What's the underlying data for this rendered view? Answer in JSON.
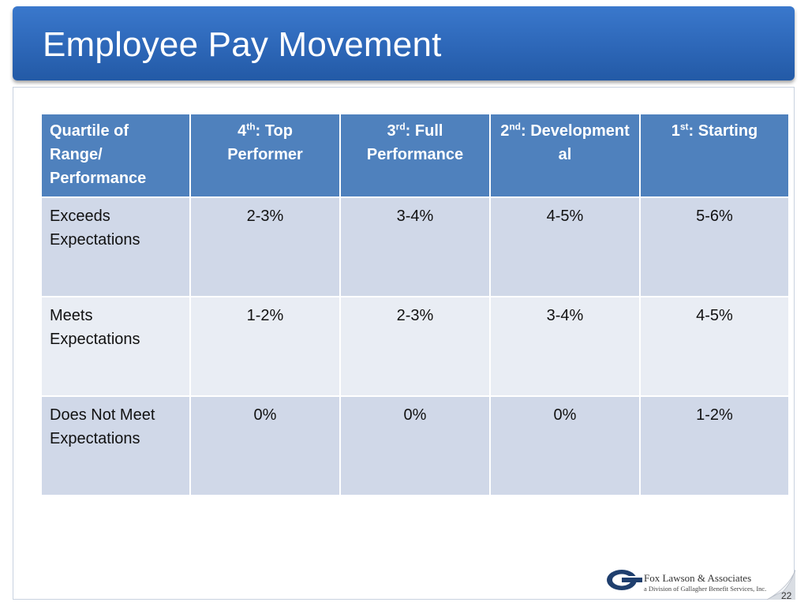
{
  "slide": {
    "title": "Employee Pay Movement",
    "page_number": "22"
  },
  "table": {
    "header": [
      {
        "main": "Quartile of Range/ Performance"
      },
      {
        "num": "4",
        "sup": "th",
        "rest": ":  Top Performer"
      },
      {
        "num": "3",
        "sup": "rd",
        "rest": ":  Full Performance"
      },
      {
        "num": "2",
        "sup": "nd",
        "rest": ": Development al"
      },
      {
        "num": "1",
        "sup": "st",
        "rest": ": Starting"
      }
    ],
    "rows": [
      {
        "label": "Exceeds Expectations",
        "values": [
          "2-3%",
          "3-4%",
          "4-5%",
          "5-6%"
        ]
      },
      {
        "label": "Meets Expectations",
        "values": [
          "1-2%",
          "2-3%",
          "3-4%",
          "4-5%"
        ]
      },
      {
        "label": "Does Not Meet Expectations",
        "values": [
          "0%",
          "0%",
          "0%",
          "1-2%"
        ]
      }
    ]
  },
  "logo": {
    "company": "Fox Lawson & Associates",
    "division": "a Division of Gallagher Benefit Services, Inc.",
    "icon": "fox-lawson-logo-mark"
  },
  "colors": {
    "title_bar": "#2d67b8",
    "header_fill": "#4f81bd",
    "row_dark": "#d0d8e8",
    "row_light": "#e9edf4"
  }
}
